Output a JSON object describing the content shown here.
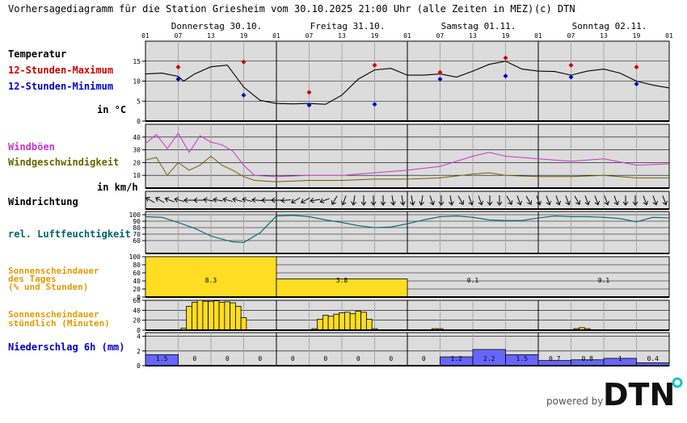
{
  "header": {
    "title": "Vorhersagediagramm für die Station Griesheim vom 30.10.2025 21:00 Uhr (alle Zeiten in MEZ)",
    "copyright": "(c) DTN"
  },
  "days": [
    "Donnerstag 30.10.",
    "Freitag 31.10.",
    "Samstag 01.11.",
    "Sonntag 02.11."
  ],
  "hour_ticks": [
    "01",
    "07",
    "13",
    "19",
    "01",
    "07",
    "13",
    "19",
    "01",
    "07",
    "13",
    "19",
    "01",
    "07",
    "13",
    "19",
    "01"
  ],
  "labels": {
    "temperature": "Temperatur",
    "tmax": "12-Stunden-Maximum",
    "tmin": "12-Stunden-Minimum",
    "temp_unit": "in °C",
    "gusts": "Windböen",
    "windspeed": "Windgeschwindigkeit",
    "wind_unit": "in km/h",
    "winddir": "Windrichtung",
    "humidity": "rel. Luftfeuchtigkeit",
    "sun_daily_1": "Sonnenscheindauer",
    "sun_daily_2": "des Tages",
    "sun_daily_3": "(% und Stunden)",
    "sun_hourly_1": "Sonnenscheindauer",
    "sun_hourly_2": "stündlich (Minuten)",
    "precip": "Niederschlag 6h (mm)"
  },
  "colors": {
    "temperature": "#000000",
    "tmax": "#cc0000",
    "tmin": "#0000cc",
    "gusts": "#cc33cc",
    "windspeed": "#666600",
    "humidity": "#006666",
    "sun": "#ffdd22",
    "precip": "#6666ff",
    "panel": "#dcdcdc",
    "sun_label": "#e69a00"
  },
  "brand": {
    "powered_by": "powered by",
    "logo": "DTN"
  },
  "chart_data": [
    {
      "id": "temperature",
      "type": "line",
      "ylim": [
        0,
        20
      ],
      "yticks": [
        0,
        5,
        10,
        15
      ],
      "x": [
        1,
        4,
        7,
        8,
        10,
        13,
        16,
        19,
        22,
        25,
        28,
        31,
        34,
        37,
        40,
        43,
        46,
        49,
        52,
        55,
        58,
        61,
        64,
        67,
        70,
        73,
        76,
        79,
        82,
        85,
        88,
        91,
        94,
        97
      ],
      "values": [
        11.8,
        12,
        11.2,
        10,
        11.8,
        13.6,
        14,
        8.5,
        5.2,
        4.4,
        4.3,
        4.4,
        4.2,
        6.5,
        10.5,
        12.8,
        13.2,
        11.5,
        11.5,
        11.8,
        11,
        12.5,
        14.2,
        15,
        13,
        12.5,
        12.4,
        11.5,
        12.5,
        13,
        12,
        10,
        9,
        8.3
      ],
      "tmax": {
        "x": [
          7,
          19,
          31,
          43,
          55,
          67,
          79,
          91
        ],
        "values": [
          13.5,
          14.8,
          7.2,
          14,
          12.2,
          15.8,
          14,
          13.5
        ]
      },
      "tmin": {
        "x": [
          7,
          19,
          31,
          43,
          55,
          67,
          79,
          91
        ],
        "values": [
          10.5,
          6.5,
          4,
          4.2,
          10.5,
          11.3,
          11,
          9.3
        ]
      }
    },
    {
      "id": "wind",
      "type": "line",
      "ylim": [
        0,
        50
      ],
      "yticks": [
        10,
        20,
        30,
        40
      ],
      "x": [
        1,
        3,
        5,
        7,
        9,
        11,
        13,
        15,
        17,
        19,
        21,
        25,
        31,
        37,
        43,
        49,
        55,
        61,
        64,
        67,
        73,
        79,
        85,
        91,
        97
      ],
      "series": [
        {
          "name": "Windböen",
          "values": [
            35,
            42,
            31,
            43,
            28,
            41,
            36,
            34,
            29,
            18,
            10,
            9,
            10,
            10,
            12,
            14,
            17,
            25,
            28,
            25,
            23,
            21,
            23,
            18,
            19
          ]
        },
        {
          "name": "Windgeschwindigkeit",
          "values": [
            22,
            24,
            10,
            20,
            14,
            18,
            25,
            18,
            14,
            9,
            6,
            5,
            6,
            6,
            7,
            7,
            8,
            11,
            12,
            10,
            9,
            9,
            10,
            8,
            8
          ]
        }
      ]
    },
    {
      "id": "winddir",
      "type": "arrows",
      "angles": [
        -60,
        -60,
        -70,
        -75,
        -90,
        -90,
        -80,
        -80,
        -75,
        -75,
        -75,
        -85,
        -90,
        -90,
        -95,
        -120,
        -120,
        -100,
        -110,
        -150,
        -160,
        -170,
        -180,
        -180,
        -180,
        -190,
        -190,
        -190,
        -170,
        -200,
        -180,
        -190,
        -210,
        -200,
        -200,
        -180,
        -180,
        -210,
        -200,
        -210,
        -200,
        -200,
        -200,
        -200,
        -210,
        -200,
        -200,
        -200,
        -200,
        -180,
        -180,
        -200,
        -200,
        -200
      ]
    },
    {
      "id": "humidity",
      "type": "line",
      "ylim": [
        40,
        105
      ],
      "yticks": [
        60,
        70,
        80,
        90,
        100
      ],
      "x": [
        1,
        4,
        7,
        10,
        13,
        16,
        17,
        19,
        22,
        25,
        28,
        31,
        34,
        37,
        40,
        43,
        46,
        49,
        52,
        55,
        58,
        61,
        64,
        67,
        70,
        73,
        76,
        79,
        82,
        85,
        88,
        91,
        94,
        97
      ],
      "values": [
        97,
        96,
        88,
        79,
        67,
        60,
        58,
        57,
        72,
        98,
        99,
        97,
        92,
        88,
        83,
        80,
        81,
        86,
        92,
        97,
        98,
        96,
        92,
        91,
        91,
        95,
        98,
        97,
        97,
        96,
        94,
        89,
        96,
        95
      ]
    },
    {
      "id": "sun_daily",
      "type": "bar",
      "ylim": [
        0,
        100
      ],
      "yticks": [
        0,
        20,
        40,
        60,
        80,
        100
      ],
      "values": [
        100,
        45,
        0.5,
        0.5
      ],
      "labels": [
        "8.3",
        "3.8",
        "0.1",
        "0.1"
      ]
    },
    {
      "id": "sun_hourly",
      "type": "bar",
      "ylim": [
        0,
        60
      ],
      "yticks": [
        0,
        20,
        40,
        60
      ],
      "x": [
        8,
        9,
        10,
        11,
        12,
        13,
        14,
        15,
        16,
        17,
        18,
        19,
        32,
        33,
        34,
        35,
        36,
        37,
        38,
        39,
        40,
        41,
        42,
        43,
        54,
        55,
        80,
        81,
        82
      ],
      "values": [
        4,
        48,
        56,
        60,
        58,
        58,
        59,
        56,
        57,
        55,
        48,
        25,
        3,
        22,
        30,
        28,
        32,
        35,
        36,
        33,
        38,
        36,
        22,
        3,
        3,
        3,
        3,
        5,
        3
      ]
    },
    {
      "id": "precip",
      "type": "bar",
      "ylim": [
        0,
        4.5
      ],
      "yticks": [
        0,
        2,
        4
      ],
      "values": [
        1.5,
        0,
        0,
        0,
        0,
        0,
        0,
        0,
        0,
        1.2,
        2.2,
        1.5,
        0.7,
        0.8,
        1,
        0.4
      ],
      "labels": [
        "1.5",
        "0",
        "0",
        "0",
        "0",
        "0",
        "0",
        "0",
        "0",
        "1.2",
        "2.2",
        "1.5",
        "0.7",
        "0.8",
        "1",
        "0.4"
      ]
    }
  ]
}
